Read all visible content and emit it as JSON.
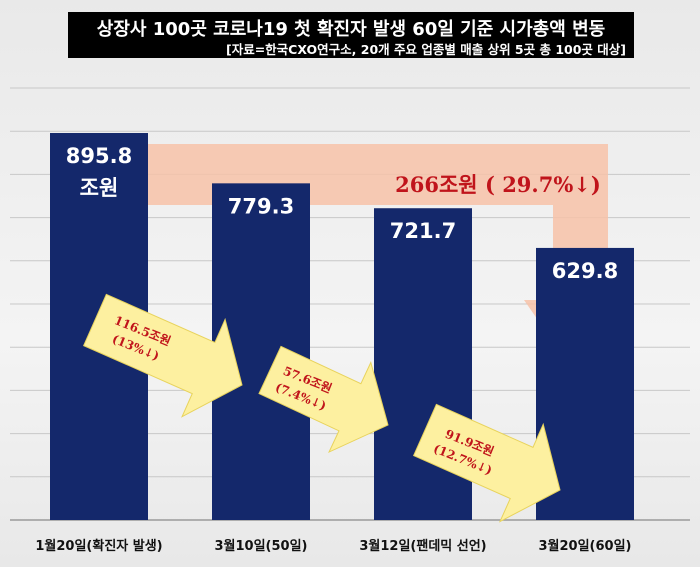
{
  "header": {
    "title": "상장사 100곳 코로나19 첫 확진자 발생 60일 기준 시가총액 변동",
    "subtitle": "[자료=한국CXO연구소, 20개 주요 업종별 매출 상위 5곳 총 100곳 대상]"
  },
  "chart_data": {
    "type": "bar",
    "title": "상장사 100곳 코로나19 첫 확진자 발생 60일 기준 시가총액 변동",
    "categories": [
      "1월20일(확진자 발생)",
      "3월10일(50일)",
      "3월12일(팬데믹 선언)",
      "3월20일(60일)"
    ],
    "values": [
      895.8,
      779.3,
      721.7,
      629.8
    ],
    "value_labels": [
      "895.8\n조원",
      "779.3",
      "721.7",
      "629.8"
    ],
    "unit": "조원",
    "ylim": [
      0,
      1000
    ],
    "grid": true,
    "bar_color": "#14286b",
    "change_labels": [
      {
        "line1": "116.5조원",
        "line2": "(13%↓)"
      },
      {
        "line1": "57.6조원",
        "line2": "(7.4%↓)"
      },
      {
        "line1": "91.9조원",
        "line2": "(12.7%↓)"
      }
    ],
    "total_change_label": "266조원 ( 29.7%↓)",
    "colors": {
      "arrow_total": "#f7c2a8",
      "arrow_step": "#fdf0a0",
      "change_text": "#c0141b"
    }
  }
}
